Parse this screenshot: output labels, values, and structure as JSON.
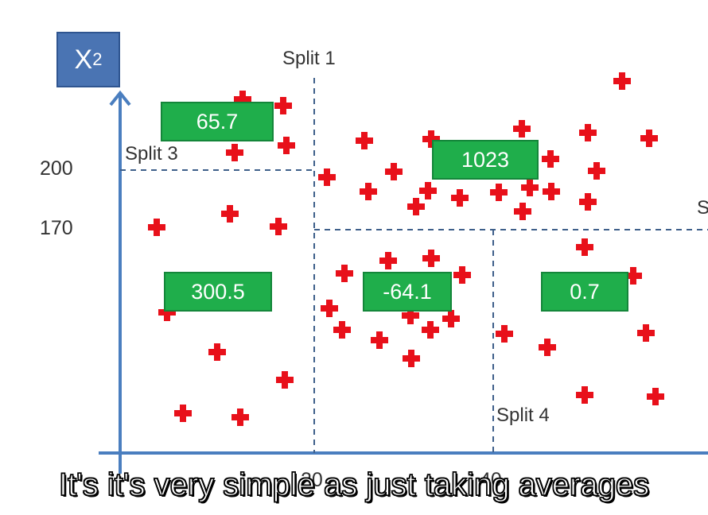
{
  "axis": {
    "y_label_main": "X",
    "y_label_sub": "2",
    "y_ticks": [
      "200",
      "170"
    ],
    "x_ticks": [
      "20",
      "40"
    ]
  },
  "splits": {
    "split1": "Split 1",
    "split2_partial": "S",
    "split3": "Split 3",
    "split4": "Split 4"
  },
  "leaves": [
    {
      "value": "65.7"
    },
    {
      "value": "1023"
    },
    {
      "value": "300.5"
    },
    {
      "value": "-64.1"
    },
    {
      "value": "0.7"
    }
  ],
  "caption": "It's it's very simple as just taking averages",
  "colors": {
    "axis_blue": "#4a7ebf",
    "leaf_green": "#1fae4b",
    "point_red": "#e8101a",
    "split_line": "#3e5f8a"
  }
}
